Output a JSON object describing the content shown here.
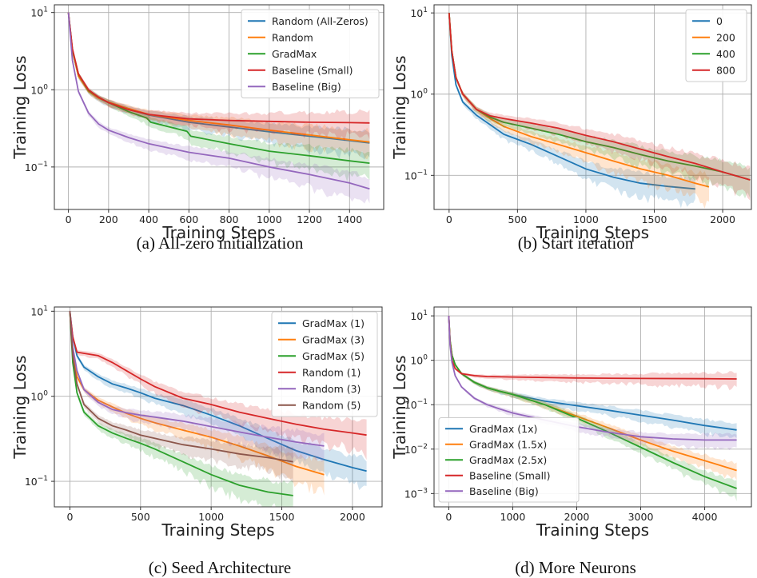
{
  "colors": {
    "blue": "#1f77b4",
    "orange": "#ff7f0e",
    "green": "#2ca02c",
    "red": "#d62728",
    "purple": "#9467bd",
    "brown": "#8c564b",
    "grid": "#b0b0b0",
    "axis": "#333333"
  },
  "captions": {
    "a": "(a) All-zero initialization",
    "b": "(b) Start iteration",
    "c": "(c) Seed Architecture",
    "d": "(d) More Neurons"
  },
  "chart_data": [
    {
      "id": "a",
      "type": "line",
      "xlabel": "Training Steps",
      "ylabel": "Training Loss",
      "yscale": "log",
      "xlim": [
        -70,
        1570
      ],
      "ylim_exp": [
        -1.55,
        1.1
      ],
      "xticks": [
        0,
        200,
        400,
        600,
        800,
        1000,
        1200,
        1400
      ],
      "yticks": [
        {
          "value": 0.1,
          "base": "10",
          "exp": "−1"
        },
        {
          "value": 1,
          "base": "10",
          "exp": "0"
        },
        {
          "value": 10,
          "base": "10",
          "exp": "1"
        }
      ],
      "grid": true,
      "legend": "top-right",
      "series": [
        {
          "name": "Random (All-Zeros)",
          "color": "blue",
          "x": [
            0,
            20,
            50,
            100,
            150,
            200,
            300,
            400,
            600,
            800,
            1000,
            1200,
            1400,
            1500
          ],
          "y": [
            10,
            3.2,
            1.5,
            0.95,
            0.78,
            0.68,
            0.56,
            0.47,
            0.38,
            0.33,
            0.285,
            0.25,
            0.22,
            0.205
          ]
        },
        {
          "name": "Random",
          "color": "orange",
          "x": [
            0,
            20,
            50,
            100,
            150,
            200,
            300,
            400,
            600,
            800,
            1000,
            1200,
            1400,
            1500
          ],
          "y": [
            10,
            3.2,
            1.5,
            0.95,
            0.78,
            0.69,
            0.57,
            0.48,
            0.4,
            0.35,
            0.3,
            0.26,
            0.225,
            0.21
          ]
        },
        {
          "name": "GradMax",
          "color": "green",
          "x": [
            0,
            20,
            50,
            100,
            150,
            200,
            300,
            390,
            410,
            590,
            610,
            800,
            1000,
            1200,
            1400,
            1500
          ],
          "y": [
            10,
            3.3,
            1.6,
            0.98,
            0.8,
            0.68,
            0.52,
            0.43,
            0.38,
            0.29,
            0.25,
            0.2,
            0.16,
            0.14,
            0.12,
            0.112
          ]
        },
        {
          "name": "Baseline (Small)",
          "color": "red",
          "x": [
            0,
            20,
            50,
            100,
            150,
            200,
            300,
            400,
            600,
            800,
            1000,
            1200,
            1400,
            1500
          ],
          "y": [
            10,
            3.4,
            1.6,
            1.0,
            0.8,
            0.68,
            0.55,
            0.48,
            0.42,
            0.4,
            0.39,
            0.38,
            0.375,
            0.372
          ]
        },
        {
          "name": "Baseline (Big)",
          "color": "purple",
          "x": [
            0,
            20,
            50,
            100,
            150,
            200,
            300,
            400,
            600,
            800,
            1000,
            1200,
            1400,
            1500
          ],
          "y": [
            10,
            2.4,
            0.95,
            0.5,
            0.36,
            0.3,
            0.24,
            0.2,
            0.155,
            0.13,
            0.1,
            0.08,
            0.062,
            0.052
          ]
        }
      ]
    },
    {
      "id": "b",
      "type": "line",
      "xlabel": "Training Steps",
      "ylabel": "Training Loss",
      "yscale": "log",
      "xlim": [
        -110,
        2210
      ],
      "ylim_exp": [
        -1.42,
        1.1
      ],
      "xticks": [
        0,
        500,
        1000,
        1500,
        2000
      ],
      "yticks": [
        {
          "value": 0.1,
          "base": "10",
          "exp": "−1"
        },
        {
          "value": 1,
          "base": "10",
          "exp": "0"
        },
        {
          "value": 10,
          "base": "10",
          "exp": "1"
        }
      ],
      "grid": true,
      "legend": "top-right",
      "series": [
        {
          "name": "0",
          "color": "blue",
          "x": [
            0,
            20,
            50,
            100,
            200,
            300,
            400,
            600,
            800,
            1000,
            1200,
            1400,
            1600,
            1800
          ],
          "y": [
            10,
            3,
            1.3,
            0.8,
            0.55,
            0.42,
            0.32,
            0.24,
            0.17,
            0.12,
            0.095,
            0.08,
            0.073,
            0.068
          ]
        },
        {
          "name": "200",
          "color": "orange",
          "x": [
            0,
            20,
            50,
            100,
            200,
            300,
            400,
            600,
            800,
            1000,
            1200,
            1400,
            1600,
            1800,
            1900
          ],
          "y": [
            10,
            3.4,
            1.6,
            1.0,
            0.65,
            0.5,
            0.4,
            0.3,
            0.24,
            0.19,
            0.15,
            0.12,
            0.1,
            0.08,
            0.072
          ]
        },
        {
          "name": "400",
          "color": "green",
          "x": [
            0,
            20,
            50,
            100,
            200,
            300,
            400,
            600,
            800,
            1000,
            1200,
            1400,
            1600,
            1800,
            2000,
            2200
          ],
          "y": [
            10,
            3.4,
            1.6,
            1.0,
            0.65,
            0.52,
            0.45,
            0.38,
            0.32,
            0.26,
            0.22,
            0.18,
            0.15,
            0.13,
            0.11,
            0.088
          ]
        },
        {
          "name": "800",
          "color": "red",
          "x": [
            0,
            20,
            50,
            100,
            200,
            300,
            400,
            600,
            800,
            1000,
            1200,
            1400,
            1600,
            1800,
            2000,
            2200
          ],
          "y": [
            10,
            3.4,
            1.6,
            1.0,
            0.65,
            0.54,
            0.5,
            0.44,
            0.38,
            0.31,
            0.26,
            0.21,
            0.17,
            0.14,
            0.11,
            0.088
          ]
        }
      ]
    },
    {
      "id": "c",
      "type": "line",
      "xlabel": "Training Steps",
      "ylabel": "Training Loss",
      "yscale": "log",
      "xlim": [
        -110,
        2210
      ],
      "ylim_exp": [
        -1.3,
        1.05
      ],
      "xticks": [
        0,
        500,
        1000,
        1500,
        2000
      ],
      "yticks": [
        {
          "value": 0.1,
          "base": "10",
          "exp": "−1"
        },
        {
          "value": 1,
          "base": "10",
          "exp": "0"
        },
        {
          "value": 10,
          "base": "10",
          "exp": "1"
        }
      ],
      "grid": true,
      "legend": "top-right",
      "series": [
        {
          "name": "GradMax (1)",
          "color": "blue",
          "x": [
            0,
            20,
            50,
            100,
            200,
            300,
            400,
            500,
            600,
            800,
            1000,
            1200,
            1400,
            1600,
            1800,
            2000,
            2100
          ],
          "y": [
            10,
            5,
            3,
            2.2,
            1.7,
            1.4,
            1.25,
            1.1,
            0.95,
            0.78,
            0.6,
            0.45,
            0.32,
            0.23,
            0.18,
            0.145,
            0.132
          ]
        },
        {
          "name": "GradMax (3)",
          "color": "orange",
          "x": [
            0,
            20,
            50,
            100,
            200,
            300,
            400,
            500,
            600,
            800,
            1000,
            1200,
            1400,
            1600,
            1800
          ],
          "y": [
            10,
            3.5,
            1.7,
            1.2,
            0.9,
            0.75,
            0.63,
            0.55,
            0.49,
            0.4,
            0.33,
            0.26,
            0.2,
            0.15,
            0.12
          ]
        },
        {
          "name": "GradMax (5)",
          "color": "green",
          "x": [
            0,
            20,
            50,
            100,
            200,
            300,
            400,
            500,
            600,
            800,
            1000,
            1200,
            1400,
            1580
          ],
          "y": [
            10,
            2.5,
            1.1,
            0.65,
            0.45,
            0.37,
            0.32,
            0.28,
            0.24,
            0.17,
            0.12,
            0.09,
            0.075,
            0.068
          ]
        },
        {
          "name": "Random (1)",
          "color": "red",
          "x": [
            0,
            20,
            50,
            100,
            200,
            300,
            400,
            500,
            600,
            800,
            1000,
            1200,
            1400,
            1600,
            1800,
            2000,
            2100
          ],
          "y": [
            10,
            5,
            3.3,
            3.2,
            3.0,
            2.5,
            2.0,
            1.6,
            1.3,
            0.95,
            0.8,
            0.65,
            0.55,
            0.47,
            0.41,
            0.37,
            0.35
          ]
        },
        {
          "name": "Random (3)",
          "color": "purple",
          "x": [
            0,
            20,
            50,
            100,
            200,
            300,
            400,
            500,
            600,
            800,
            1000,
            1200,
            1400,
            1600,
            1800
          ],
          "y": [
            10,
            3.8,
            2,
            1.2,
            0.85,
            0.7,
            0.64,
            0.6,
            0.57,
            0.51,
            0.44,
            0.38,
            0.33,
            0.29,
            0.26
          ]
        },
        {
          "name": "Random (5)",
          "color": "brown",
          "x": [
            0,
            20,
            50,
            100,
            200,
            300,
            400,
            500,
            600,
            800,
            1000,
            1200,
            1400,
            1580
          ],
          "y": [
            10,
            3,
            1.4,
            0.8,
            0.55,
            0.45,
            0.4,
            0.35,
            0.32,
            0.27,
            0.24,
            0.21,
            0.19,
            0.17
          ]
        }
      ]
    },
    {
      "id": "d",
      "type": "line",
      "xlabel": "Training Steps",
      "ylabel": "Training Loss",
      "yscale": "log",
      "xlim": [
        -230,
        4730
      ],
      "ylim_exp": [
        -3.3,
        1.2
      ],
      "xticks": [
        0,
        1000,
        2000,
        3000,
        4000
      ],
      "yticks": [
        {
          "value": 0.001,
          "base": "10",
          "exp": "−3"
        },
        {
          "value": 0.01,
          "base": "10",
          "exp": "−2"
        },
        {
          "value": 0.1,
          "base": "10",
          "exp": "−1"
        },
        {
          "value": 1,
          "base": "10",
          "exp": "0"
        },
        {
          "value": 10,
          "base": "10",
          "exp": "1"
        }
      ],
      "grid": true,
      "legend": "bottom-left",
      "series": [
        {
          "name": "GradMax (1x)",
          "color": "blue",
          "x": [
            0,
            20,
            50,
            100,
            200,
            400,
            600,
            800,
            1000,
            1500,
            2000,
            2500,
            3000,
            3500,
            4000,
            4500
          ],
          "y": [
            10,
            2.8,
            1.3,
            0.8,
            0.5,
            0.32,
            0.24,
            0.2,
            0.17,
            0.12,
            0.095,
            0.075,
            0.058,
            0.045,
            0.034,
            0.027
          ]
        },
        {
          "name": "GradMax (1.5x)",
          "color": "orange",
          "x": [
            0,
            20,
            50,
            100,
            200,
            400,
            600,
            800,
            1000,
            1500,
            2000,
            2500,
            3000,
            3500,
            4000,
            4500
          ],
          "y": [
            10,
            2.8,
            1.3,
            0.8,
            0.5,
            0.32,
            0.24,
            0.2,
            0.17,
            0.1,
            0.055,
            0.03,
            0.016,
            0.009,
            0.0055,
            0.0033
          ]
        },
        {
          "name": "GradMax (2.5x)",
          "color": "green",
          "x": [
            0,
            20,
            50,
            100,
            200,
            400,
            600,
            800,
            1000,
            1500,
            2000,
            2500,
            3000,
            3500,
            4000,
            4500
          ],
          "y": [
            10,
            2.8,
            1.3,
            0.8,
            0.5,
            0.32,
            0.24,
            0.2,
            0.17,
            0.1,
            0.05,
            0.024,
            0.011,
            0.005,
            0.0024,
            0.0013
          ]
        },
        {
          "name": "Baseline (Small)",
          "color": "red",
          "x": [
            0,
            20,
            50,
            100,
            200,
            400,
            600,
            1000,
            2000,
            3000,
            4000,
            4500
          ],
          "y": [
            10,
            2.5,
            1,
            0.65,
            0.5,
            0.45,
            0.43,
            0.42,
            0.4,
            0.39,
            0.385,
            0.38
          ]
        },
        {
          "name": "Baseline (Big)",
          "color": "purple",
          "x": [
            0,
            20,
            50,
            100,
            200,
            400,
            600,
            800,
            1000,
            1500,
            2000,
            2500,
            3000,
            3500,
            4000,
            4500
          ],
          "y": [
            10,
            2.2,
            0.9,
            0.45,
            0.25,
            0.14,
            0.1,
            0.08,
            0.065,
            0.045,
            0.032,
            0.024,
            0.019,
            0.017,
            0.016,
            0.016
          ]
        }
      ]
    }
  ]
}
